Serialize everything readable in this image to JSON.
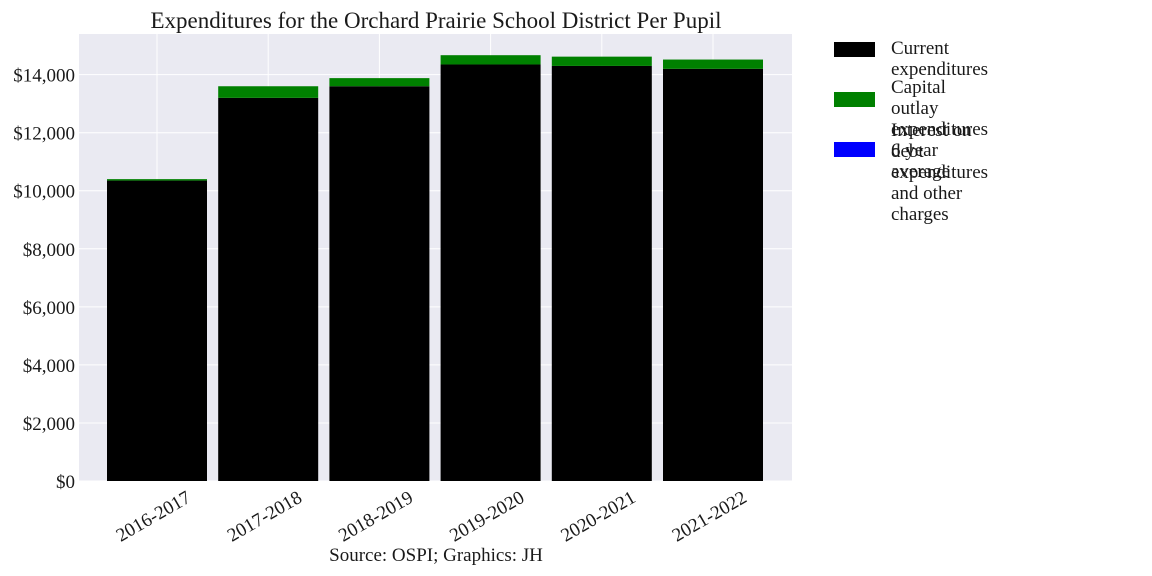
{
  "chart_data": {
    "type": "bar",
    "stacked": true,
    "title": "Expenditures for the Orchard Prairie School District Per Pupil",
    "xlabel": "Source: OSPI; Graphics: JH",
    "ylabel": "",
    "ylim": [
      0,
      15400
    ],
    "yticks": [
      0,
      2000,
      4000,
      6000,
      8000,
      10000,
      12000,
      14000
    ],
    "ytick_labels": [
      "$0",
      "$2,000",
      "$4,000",
      "$6,000",
      "$8,000",
      "$10,000",
      "$12,000",
      "$14,000"
    ],
    "categories": [
      "2016-2017",
      "2017-2018",
      "2018-2019",
      "2019-2020",
      "2020-2021",
      "2021-2022"
    ],
    "series": [
      {
        "name": "Current expenditures",
        "color": "#000000",
        "values": [
          10350,
          13200,
          13600,
          14350,
          14300,
          14200
        ]
      },
      {
        "name": "Capital outlay expenditures\n6 year average",
        "color": "#008000",
        "values": [
          50,
          400,
          280,
          320,
          320,
          320
        ]
      },
      {
        "name": "Interest on debt expenditures\nand other charges",
        "color": "#0000ff",
        "values": [
          0,
          0,
          0,
          0,
          0,
          0
        ]
      }
    ],
    "grid": true,
    "legend_position": "outside-right"
  }
}
